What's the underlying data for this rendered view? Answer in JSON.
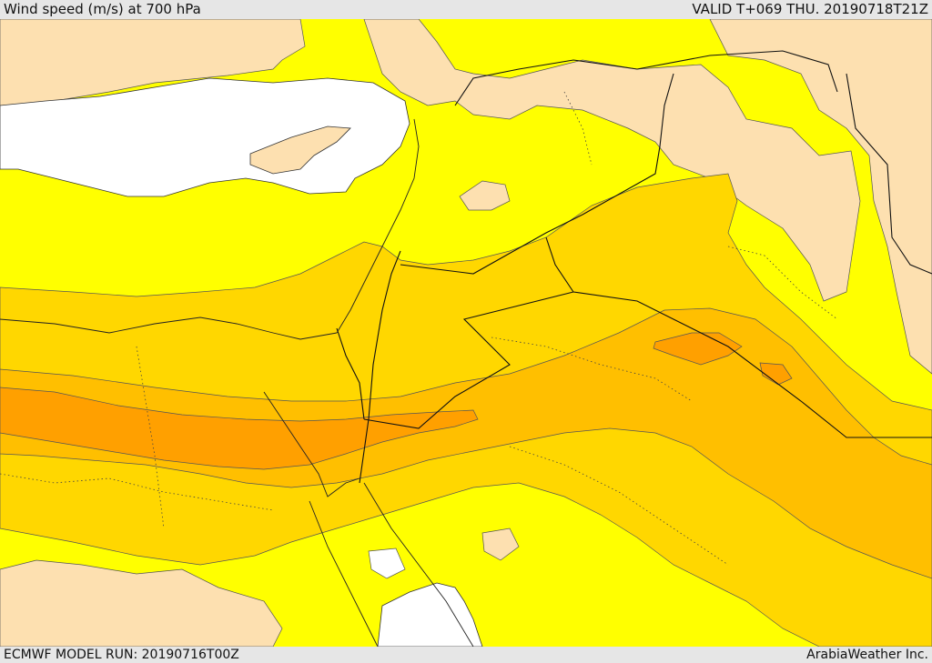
{
  "header": {
    "left": "Wind speed (m/s) at 700 hPa",
    "right": "VALID T+069 THU. 20190718T21Z"
  },
  "footer": {
    "left": "ECMWF MODEL RUN: 20190716T00Z",
    "right": "ArabiaWeather Inc."
  },
  "colors": {
    "sea": "#ffffff",
    "lowest": "#fde0b0",
    "yellow": "#ffff00",
    "gold": "#ffd700",
    "amber": "#ffbf00",
    "orange": "#ffa000"
  }
}
